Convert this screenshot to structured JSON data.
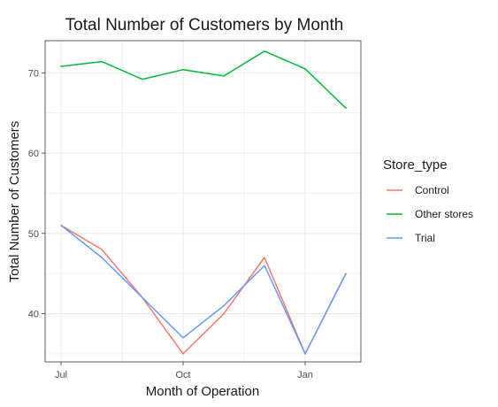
{
  "chart_data": {
    "type": "line",
    "title": "Total Number of Customers by Month",
    "xlabel": "Month of Operation",
    "ylabel": "Total Number of Customers",
    "x": [
      "2018-07",
      "2018-08",
      "2018-09",
      "2018-10",
      "2018-11",
      "2018-12",
      "2019-01",
      "2019-02"
    ],
    "x_ticks": [
      "Jul",
      "Oct",
      "Jan"
    ],
    "y_ticks": [
      40,
      50,
      60,
      70
    ],
    "ylim": [
      34,
      74
    ],
    "grid": true,
    "legend": {
      "title": "Store_type",
      "position": "right"
    },
    "series": [
      {
        "name": "Control",
        "color": "#F8766D",
        "values": [
          51,
          48,
          42,
          35,
          40,
          47,
          35,
          45
        ]
      },
      {
        "name": "Other stores",
        "color": "#00BA38",
        "values": [
          70.8,
          71.4,
          69.2,
          70.4,
          69.6,
          72.7,
          70.5,
          65.6
        ]
      },
      {
        "name": "Trial",
        "color": "#619CFF",
        "values": [
          51,
          47,
          42,
          37,
          41,
          46,
          35,
          45
        ]
      }
    ]
  }
}
